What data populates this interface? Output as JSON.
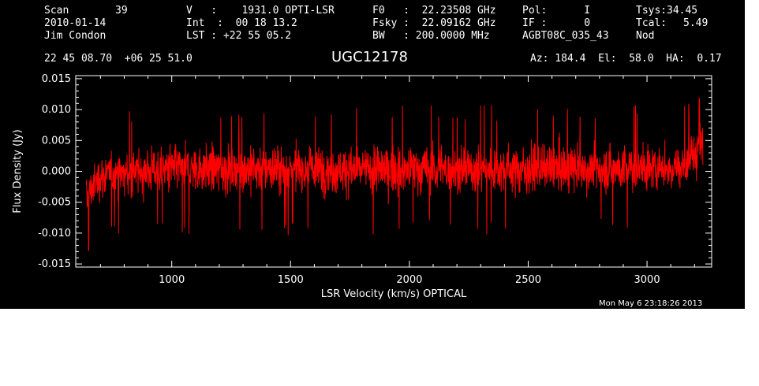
{
  "header": {
    "scan_label": "Scan",
    "scan_num": "39",
    "date": "2010-01-14",
    "observer": "Jim Condon",
    "col2": [
      "V   :    1931.0 OPTI-LSR",
      "Int  :  00 18 13.2",
      "LST : +22 55 05.2"
    ],
    "col3": [
      "F0   :  22.23508 GHz",
      "Fsky :  22.09162 GHz",
      "BW   : 200.0000 MHz"
    ],
    "col4": [
      "Pol:      I",
      "IF :      0",
      "AGBT08C_035_43"
    ],
    "col5_labels": [
      "Tsys:",
      "Tcal:",
      "Nod"
    ],
    "col5_values": [
      "34.45",
      "5.49",
      ""
    ],
    "coords": "22 45 08.70  +06 25 51.0",
    "object": "UGC12178",
    "azelha": "Az: 184.4  El:  58.0  HA:  0.17",
    "timestamp": "Mon May  6 23:18:26 2013"
  },
  "colors": {
    "background": "#000000",
    "axes": "#ffffff",
    "trace": "#ff0000"
  },
  "chart_data": {
    "type": "line",
    "xlabel": "LSR Velocity (km/s) OPTICAL",
    "ylabel": "Flux Density (Jy)",
    "xlim": [
      596,
      3272
    ],
    "ylim": [
      -0.0155,
      0.0155
    ],
    "xticks": [
      1000,
      1500,
      2000,
      2500,
      3000
    ],
    "xtick_labels": [
      "1000",
      "1500",
      "2000",
      "2500",
      "3000"
    ],
    "yticks": [
      -0.015,
      -0.01,
      -0.005,
      0.0,
      0.005,
      0.01,
      0.015
    ],
    "ytick_labels": [
      "-0.015",
      "-0.010",
      "-0.005",
      "0.000",
      "0.005",
      "0.010",
      "0.015"
    ],
    "series": [
      {
        "x_start": 640,
        "x_end": 3235,
        "noise_sigma": 0.0042,
        "envelope": [
          {
            "x": 640,
            "ymin": -0.0125,
            "ymax": 0.0035
          },
          {
            "x": 660,
            "ymin": -0.0105,
            "ymax": 0.0045
          },
          {
            "x": 700,
            "ymin": -0.0085,
            "ymax": 0.007
          },
          {
            "x": 1000,
            "ymin": -0.008,
            "ymax": 0.009
          },
          {
            "x": 2000,
            "ymin": -0.0085,
            "ymax": 0.009
          },
          {
            "x": 3000,
            "ymin": -0.008,
            "ymax": 0.009
          },
          {
            "x": 3150,
            "ymin": -0.007,
            "ymax": 0.0085
          },
          {
            "x": 3200,
            "ymin": -0.005,
            "ymax": 0.011
          },
          {
            "x": 3235,
            "ymin": -0.003,
            "ymax": 0.012
          }
        ],
        "peak_high": {
          "x": 3220,
          "y": 0.0118
        },
        "peak_low": {
          "x": 650,
          "y": -0.0128
        }
      }
    ]
  }
}
